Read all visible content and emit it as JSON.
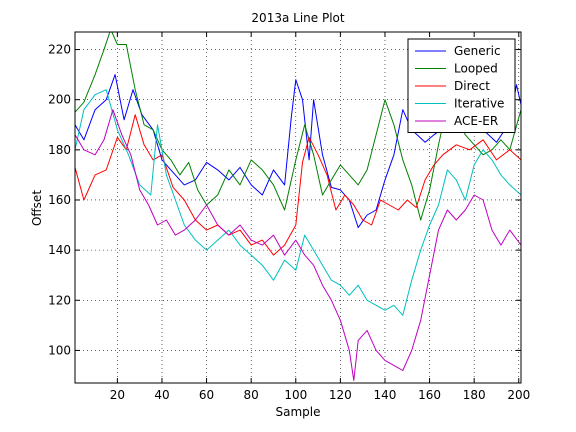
{
  "chart_data": {
    "type": "line",
    "title": "2013a Line Plot",
    "xlabel": "Sample",
    "ylabel": "Offset",
    "xlim": [
      1,
      201
    ],
    "ylim": [
      87,
      227
    ],
    "xticks": [
      20,
      40,
      60,
      80,
      100,
      120,
      140,
      160,
      180,
      200
    ],
    "yticks": [
      100,
      120,
      140,
      160,
      180,
      200,
      220
    ],
    "grid": true,
    "legend_position": "top-right",
    "series": [
      {
        "name": "Generic",
        "color": "#0000ff",
        "points": [
          [
            1,
            190
          ],
          [
            5,
            184
          ],
          [
            10,
            196
          ],
          [
            15,
            200
          ],
          [
            19,
            210
          ],
          [
            23,
            192
          ],
          [
            27,
            204
          ],
          [
            31,
            194
          ],
          [
            36,
            188
          ],
          [
            40,
            176
          ],
          [
            45,
            171
          ],
          [
            50,
            166
          ],
          [
            55,
            168
          ],
          [
            60,
            175
          ],
          [
            65,
            172
          ],
          [
            70,
            168
          ],
          [
            75,
            173
          ],
          [
            80,
            166
          ],
          [
            85,
            162
          ],
          [
            90,
            172
          ],
          [
            95,
            166
          ],
          [
            98,
            193
          ],
          [
            100,
            208
          ],
          [
            103,
            200
          ],
          [
            106,
            176
          ],
          [
            108,
            200
          ],
          [
            112,
            178
          ],
          [
            116,
            165
          ],
          [
            120,
            164
          ],
          [
            124,
            160
          ],
          [
            128,
            149
          ],
          [
            132,
            154
          ],
          [
            136,
            156
          ],
          [
            140,
            168
          ],
          [
            144,
            178
          ],
          [
            148,
            196
          ],
          [
            152,
            188
          ],
          [
            158,
            183
          ],
          [
            162,
            186
          ],
          [
            168,
            190
          ],
          [
            172,
            196
          ],
          [
            178,
            192
          ],
          [
            184,
            188
          ],
          [
            190,
            183
          ],
          [
            196,
            191
          ],
          [
            199,
            206
          ],
          [
            201,
            198
          ]
        ]
      },
      {
        "name": "Looped",
        "color": "#008000",
        "points": [
          [
            1,
            195
          ],
          [
            5,
            199
          ],
          [
            10,
            210
          ],
          [
            14,
            220
          ],
          [
            17,
            228
          ],
          [
            20,
            222
          ],
          [
            24,
            222
          ],
          [
            28,
            204
          ],
          [
            32,
            190
          ],
          [
            36,
            188
          ],
          [
            40,
            180
          ],
          [
            44,
            176
          ],
          [
            48,
            170
          ],
          [
            52,
            175
          ],
          [
            56,
            164
          ],
          [
            60,
            158
          ],
          [
            65,
            162
          ],
          [
            70,
            172
          ],
          [
            75,
            166
          ],
          [
            80,
            176
          ],
          [
            85,
            172
          ],
          [
            90,
            166
          ],
          [
            95,
            156
          ],
          [
            100,
            176
          ],
          [
            104,
            190
          ],
          [
            108,
            178
          ],
          [
            112,
            162
          ],
          [
            116,
            168
          ],
          [
            120,
            174
          ],
          [
            124,
            170
          ],
          [
            128,
            166
          ],
          [
            132,
            172
          ],
          [
            136,
            186
          ],
          [
            140,
            200
          ],
          [
            144,
            190
          ],
          [
            148,
            176
          ],
          [
            152,
            166
          ],
          [
            156,
            152
          ],
          [
            160,
            164
          ],
          [
            164,
            182
          ],
          [
            168,
            198
          ],
          [
            172,
            194
          ],
          [
            176,
            186
          ],
          [
            180,
            182
          ],
          [
            184,
            178
          ],
          [
            188,
            180
          ],
          [
            192,
            184
          ],
          [
            196,
            180
          ],
          [
            201,
            196
          ]
        ]
      },
      {
        "name": "Direct",
        "color": "#ff0000",
        "points": [
          [
            1,
            173
          ],
          [
            5,
            160
          ],
          [
            10,
            170
          ],
          [
            15,
            172
          ],
          [
            20,
            185
          ],
          [
            24,
            180
          ],
          [
            28,
            194
          ],
          [
            32,
            182
          ],
          [
            36,
            176
          ],
          [
            40,
            178
          ],
          [
            45,
            165
          ],
          [
            50,
            160
          ],
          [
            55,
            152
          ],
          [
            60,
            148
          ],
          [
            65,
            150
          ],
          [
            70,
            146
          ],
          [
            75,
            148
          ],
          [
            80,
            142
          ],
          [
            85,
            144
          ],
          [
            90,
            138
          ],
          [
            95,
            142
          ],
          [
            100,
            150
          ],
          [
            103,
            175
          ],
          [
            106,
            185
          ],
          [
            110,
            178
          ],
          [
            114,
            170
          ],
          [
            118,
            156
          ],
          [
            122,
            162
          ],
          [
            126,
            158
          ],
          [
            130,
            152
          ],
          [
            134,
            150
          ],
          [
            138,
            160
          ],
          [
            142,
            158
          ],
          [
            146,
            156
          ],
          [
            150,
            160
          ],
          [
            154,
            157
          ],
          [
            158,
            168
          ],
          [
            162,
            174
          ],
          [
            166,
            178
          ],
          [
            172,
            182
          ],
          [
            178,
            180
          ],
          [
            184,
            184
          ],
          [
            190,
            176
          ],
          [
            196,
            180
          ],
          [
            201,
            176
          ]
        ]
      },
      {
        "name": "Iterative",
        "color": "#00bfbf",
        "points": [
          [
            1,
            180
          ],
          [
            5,
            196
          ],
          [
            10,
            202
          ],
          [
            15,
            204
          ],
          [
            20,
            188
          ],
          [
            25,
            178
          ],
          [
            30,
            166
          ],
          [
            35,
            162
          ],
          [
            38,
            190
          ],
          [
            42,
            170
          ],
          [
            46,
            160
          ],
          [
            50,
            150
          ],
          [
            55,
            144
          ],
          [
            60,
            140
          ],
          [
            65,
            144
          ],
          [
            70,
            148
          ],
          [
            75,
            142
          ],
          [
            80,
            138
          ],
          [
            85,
            134
          ],
          [
            90,
            128
          ],
          [
            95,
            136
          ],
          [
            100,
            132
          ],
          [
            104,
            146
          ],
          [
            108,
            140
          ],
          [
            112,
            134
          ],
          [
            116,
            128
          ],
          [
            120,
            126
          ],
          [
            124,
            122
          ],
          [
            128,
            126
          ],
          [
            132,
            120
          ],
          [
            136,
            118
          ],
          [
            140,
            116
          ],
          [
            144,
            118
          ],
          [
            148,
            114
          ],
          [
            152,
            128
          ],
          [
            156,
            140
          ],
          [
            160,
            150
          ],
          [
            164,
            158
          ],
          [
            168,
            172
          ],
          [
            172,
            168
          ],
          [
            176,
            160
          ],
          [
            180,
            174
          ],
          [
            184,
            180
          ],
          [
            188,
            176
          ],
          [
            192,
            170
          ],
          [
            196,
            166
          ],
          [
            201,
            162
          ]
        ]
      },
      {
        "name": "ACE-ER",
        "color": "#bf00bf",
        "points": [
          [
            1,
            186
          ],
          [
            5,
            180
          ],
          [
            10,
            178
          ],
          [
            14,
            184
          ],
          [
            18,
            196
          ],
          [
            22,
            186
          ],
          [
            26,
            178
          ],
          [
            30,
            164
          ],
          [
            34,
            158
          ],
          [
            38,
            150
          ],
          [
            42,
            152
          ],
          [
            46,
            146
          ],
          [
            50,
            148
          ],
          [
            55,
            152
          ],
          [
            60,
            158
          ],
          [
            65,
            150
          ],
          [
            70,
            146
          ],
          [
            75,
            150
          ],
          [
            80,
            144
          ],
          [
            85,
            142
          ],
          [
            90,
            146
          ],
          [
            95,
            138
          ],
          [
            100,
            144
          ],
          [
            104,
            138
          ],
          [
            108,
            134
          ],
          [
            112,
            126
          ],
          [
            116,
            120
          ],
          [
            120,
            112
          ],
          [
            124,
            100
          ],
          [
            126,
            88
          ],
          [
            128,
            104
          ],
          [
            132,
            108
          ],
          [
            136,
            100
          ],
          [
            140,
            96
          ],
          [
            144,
            94
          ],
          [
            148,
            92
          ],
          [
            152,
            100
          ],
          [
            156,
            112
          ],
          [
            160,
            130
          ],
          [
            164,
            148
          ],
          [
            168,
            156
          ],
          [
            172,
            152
          ],
          [
            176,
            156
          ],
          [
            180,
            162
          ],
          [
            184,
            160
          ],
          [
            188,
            148
          ],
          [
            192,
            142
          ],
          [
            196,
            148
          ],
          [
            201,
            142
          ]
        ]
      }
    ]
  }
}
